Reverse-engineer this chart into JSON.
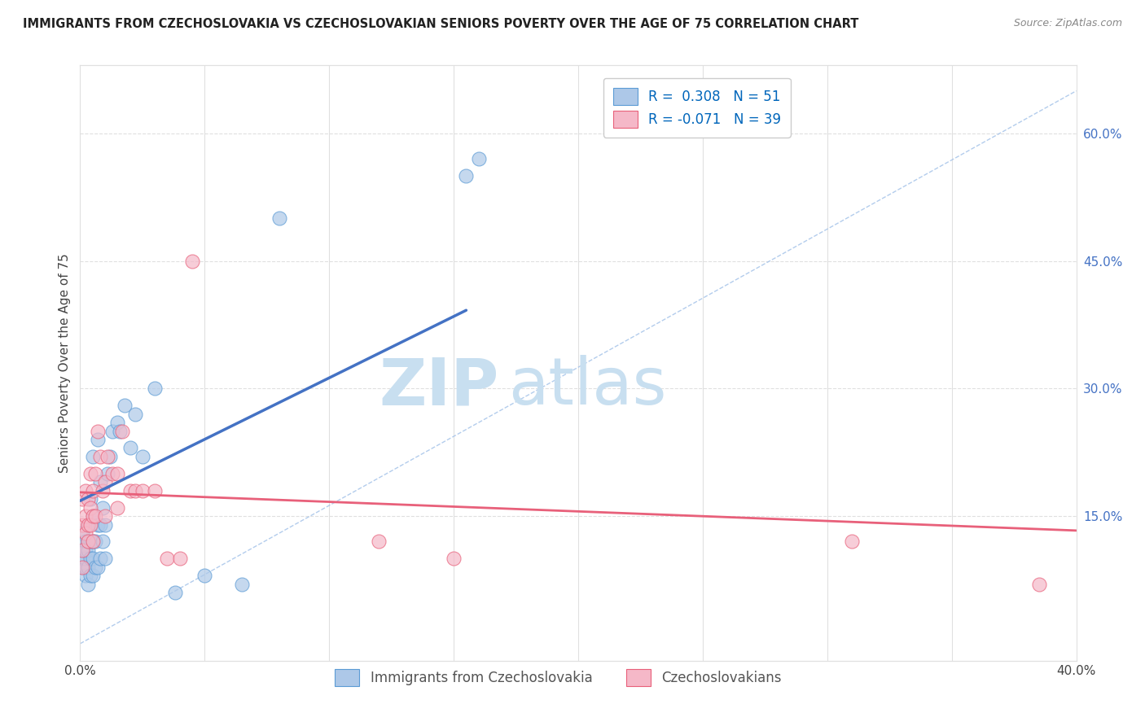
{
  "title": "IMMIGRANTS FROM CZECHOSLOVAKIA VS CZECHOSLOVAKIAN SENIORS POVERTY OVER THE AGE OF 75 CORRELATION CHART",
  "source": "Source: ZipAtlas.com",
  "ylabel": "Seniors Poverty Over the Age of 75",
  "right_yticks": [
    0.15,
    0.3,
    0.45,
    0.6
  ],
  "right_ytick_labels": [
    "15.0%",
    "30.0%",
    "45.0%",
    "60.0%"
  ],
  "xlim": [
    0.0,
    0.4
  ],
  "ylim": [
    -0.02,
    0.68
  ],
  "blue_R": 0.308,
  "blue_N": 51,
  "pink_R": -0.071,
  "pink_N": 39,
  "blue_label": "Immigrants from Czechoslovakia",
  "pink_label": "Czechoslovakians",
  "blue_color": "#adc8e8",
  "pink_color": "#f5b8c8",
  "blue_edge_color": "#5b9bd5",
  "pink_edge_color": "#e8607a",
  "blue_line_color": "#4472c4",
  "pink_line_color": "#e8607a",
  "ref_line_color": "#a0c0e8",
  "grid_color": "#e0e0e0",
  "background_color": "#ffffff",
  "blue_scatter_x": [
    0.001,
    0.001,
    0.001,
    0.001,
    0.002,
    0.002,
    0.002,
    0.002,
    0.002,
    0.003,
    0.003,
    0.003,
    0.003,
    0.003,
    0.004,
    0.004,
    0.004,
    0.004,
    0.005,
    0.005,
    0.005,
    0.005,
    0.005,
    0.006,
    0.006,
    0.007,
    0.007,
    0.007,
    0.008,
    0.008,
    0.008,
    0.009,
    0.009,
    0.01,
    0.01,
    0.011,
    0.012,
    0.013,
    0.015,
    0.016,
    0.018,
    0.02,
    0.022,
    0.025,
    0.03,
    0.038,
    0.05,
    0.065,
    0.08,
    0.155,
    0.16
  ],
  "blue_scatter_y": [
    0.09,
    0.1,
    0.11,
    0.13,
    0.08,
    0.09,
    0.1,
    0.11,
    0.12,
    0.07,
    0.09,
    0.11,
    0.12,
    0.14,
    0.08,
    0.1,
    0.12,
    0.17,
    0.08,
    0.1,
    0.12,
    0.15,
    0.22,
    0.09,
    0.12,
    0.09,
    0.14,
    0.24,
    0.1,
    0.14,
    0.19,
    0.12,
    0.16,
    0.1,
    0.14,
    0.2,
    0.22,
    0.25,
    0.26,
    0.25,
    0.28,
    0.23,
    0.27,
    0.22,
    0.3,
    0.06,
    0.08,
    0.07,
    0.5,
    0.55,
    0.57
  ],
  "pink_scatter_x": [
    0.001,
    0.001,
    0.001,
    0.001,
    0.002,
    0.002,
    0.002,
    0.003,
    0.003,
    0.003,
    0.004,
    0.004,
    0.004,
    0.005,
    0.005,
    0.005,
    0.006,
    0.006,
    0.007,
    0.008,
    0.009,
    0.01,
    0.01,
    0.011,
    0.013,
    0.015,
    0.015,
    0.017,
    0.02,
    0.022,
    0.025,
    0.03,
    0.035,
    0.04,
    0.045,
    0.12,
    0.15,
    0.31,
    0.385
  ],
  "pink_scatter_y": [
    0.09,
    0.11,
    0.14,
    0.17,
    0.13,
    0.15,
    0.18,
    0.12,
    0.14,
    0.17,
    0.14,
    0.16,
    0.2,
    0.12,
    0.15,
    0.18,
    0.15,
    0.2,
    0.25,
    0.22,
    0.18,
    0.15,
    0.19,
    0.22,
    0.2,
    0.16,
    0.2,
    0.25,
    0.18,
    0.18,
    0.18,
    0.18,
    0.1,
    0.1,
    0.45,
    0.12,
    0.1,
    0.12,
    0.07
  ],
  "blue_trend_x": [
    0.0,
    0.155
  ],
  "blue_trend_y": [
    0.168,
    0.392
  ],
  "pink_trend_x": [
    0.0,
    0.4
  ],
  "pink_trend_y": [
    0.178,
    0.133
  ],
  "ref_line_x": [
    0.0,
    0.4
  ],
  "ref_line_y": [
    0.0,
    0.65
  ],
  "watermark_zip": "ZIP",
  "watermark_atlas": "atlas",
  "watermark_color": "#c8dff0"
}
